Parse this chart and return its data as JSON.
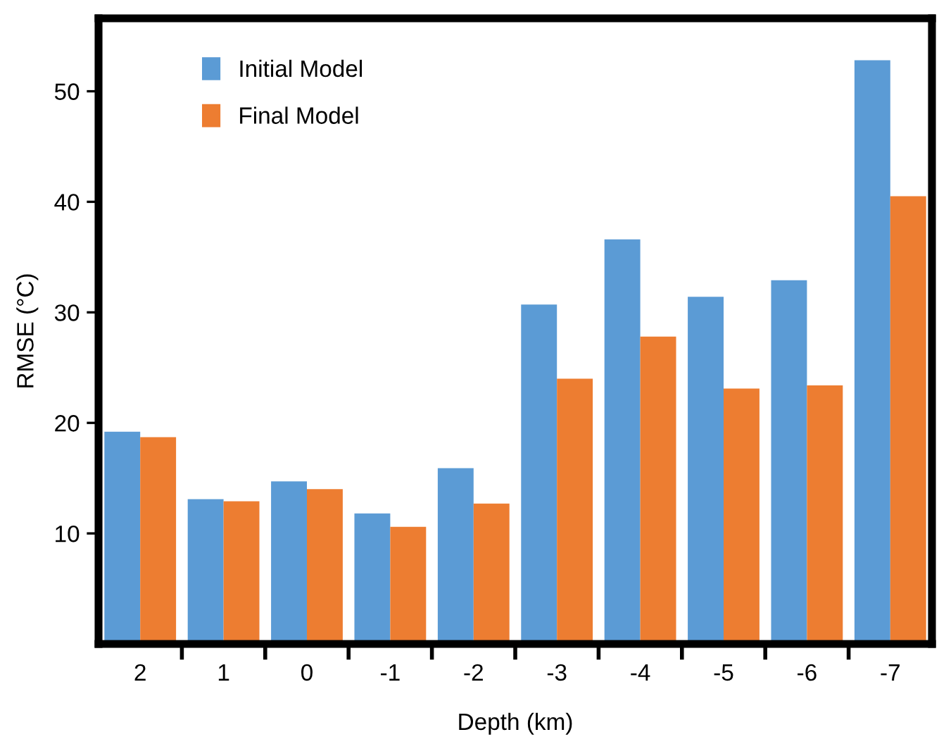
{
  "chart_data": {
    "type": "bar",
    "xlabel": "Depth (km)",
    "ylabel": "RMSE (°C)",
    "categories": [
      "2",
      "1",
      "0",
      "-1",
      "-2",
      "-3",
      "-4",
      "-5",
      "-6",
      "-7"
    ],
    "series": [
      {
        "name": "Initial Model",
        "color": "#5b9bd5",
        "values": [
          19.2,
          13.1,
          14.7,
          11.8,
          15.9,
          30.7,
          36.6,
          31.4,
          32.9,
          52.8
        ]
      },
      {
        "name": "Final Model",
        "color": "#ed7d31",
        "values": [
          18.7,
          12.9,
          14.0,
          10.6,
          12.7,
          24.0,
          27.8,
          23.1,
          23.4,
          40.5
        ]
      }
    ],
    "ylim": [
      0,
      56.6
    ],
    "yticks": [
      10,
      20,
      30,
      40,
      50
    ],
    "grid": false,
    "legend": "top left"
  }
}
